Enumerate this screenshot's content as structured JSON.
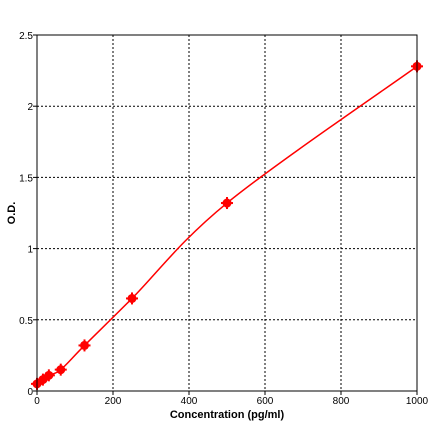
{
  "chart_data": {
    "type": "scatter",
    "title": "",
    "xlabel": "Concentration (pg/ml)",
    "ylabel": "O.D.",
    "xlim": [
      0,
      1000
    ],
    "ylim": [
      0,
      2.5
    ],
    "xticks": [
      0,
      200,
      400,
      600,
      800,
      1000
    ],
    "yticks": [
      0,
      0.5,
      1,
      1.5,
      2,
      2.5
    ],
    "xtick_labels": [
      "0",
      "200",
      "400",
      "600",
      "800",
      "1000"
    ],
    "ytick_labels": [
      "0",
      "0.5",
      "1",
      "1.5",
      "2",
      "2.5"
    ],
    "grid": true,
    "grid_style": "dotted",
    "legend": "none",
    "series": [
      {
        "values_x": [
          0,
          15.6,
          31.2,
          62.5,
          125,
          250,
          500,
          1000
        ],
        "values_y": [
          0.05,
          0.08,
          0.11,
          0.15,
          0.32,
          0.65,
          1.32,
          2.28
        ],
        "color": "#ff0000",
        "fit": "smooth curve"
      }
    ]
  }
}
